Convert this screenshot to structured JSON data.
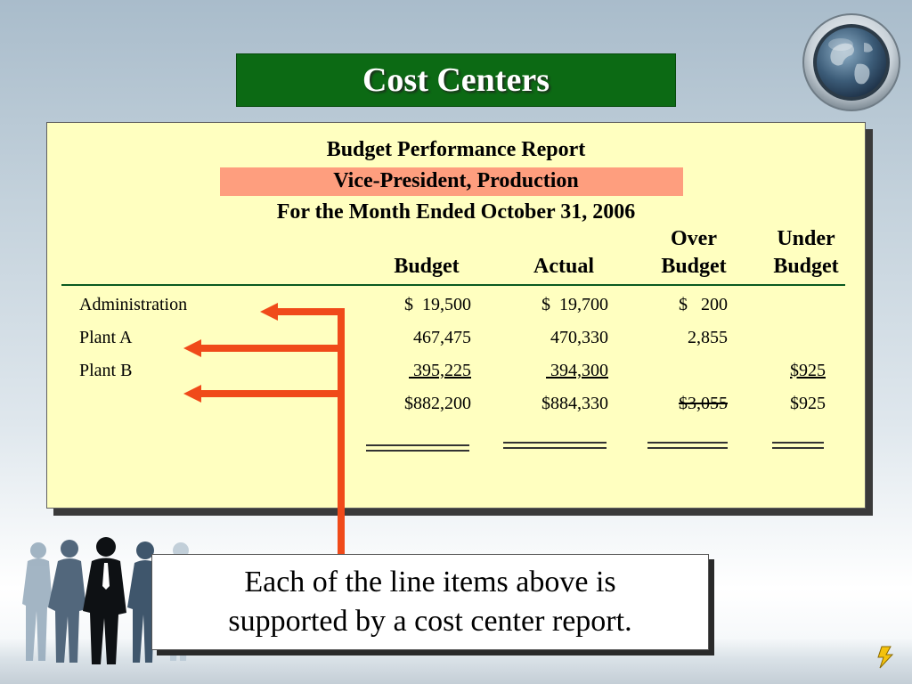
{
  "slide": {
    "title": "Cost Centers"
  },
  "report": {
    "heading": "Budget Performance Report",
    "subheading": "Vice-President, Production",
    "period": "For the Month Ended October 31, 2006",
    "columns": {
      "budget": "Budget",
      "actual": "Actual",
      "over_line1": "Over",
      "over_line2": "Budget",
      "under_line1": "Under",
      "under_line2": "Budget"
    },
    "rows": [
      {
        "label": "Administration",
        "budget": "$  19,500",
        "actual": "$  19,700",
        "over": "$   200",
        "under": ""
      },
      {
        "label": "Plant A",
        "budget": "467,475",
        "actual": "470,330",
        "over": "2,855",
        "under": ""
      },
      {
        "label": "Plant B",
        "budget": " 395,225",
        "actual": " 394,300",
        "over": "",
        "under": "$925"
      }
    ],
    "totals": {
      "budget": "$882,200",
      "actual": "$884,330",
      "over": "$3,055",
      "under": "$925"
    }
  },
  "callout": {
    "line1": "Each of the line items above is",
    "line2": "supported by a cost center report."
  },
  "colors": {
    "title_bg": "#0c6a14",
    "report_bg": "#ffffc0",
    "highlight": "#fe9e7e",
    "arrow": "#f04a1a"
  },
  "icons": [
    "globe-icon",
    "business-people-silhouettes",
    "lightning-bolt-icon"
  ]
}
